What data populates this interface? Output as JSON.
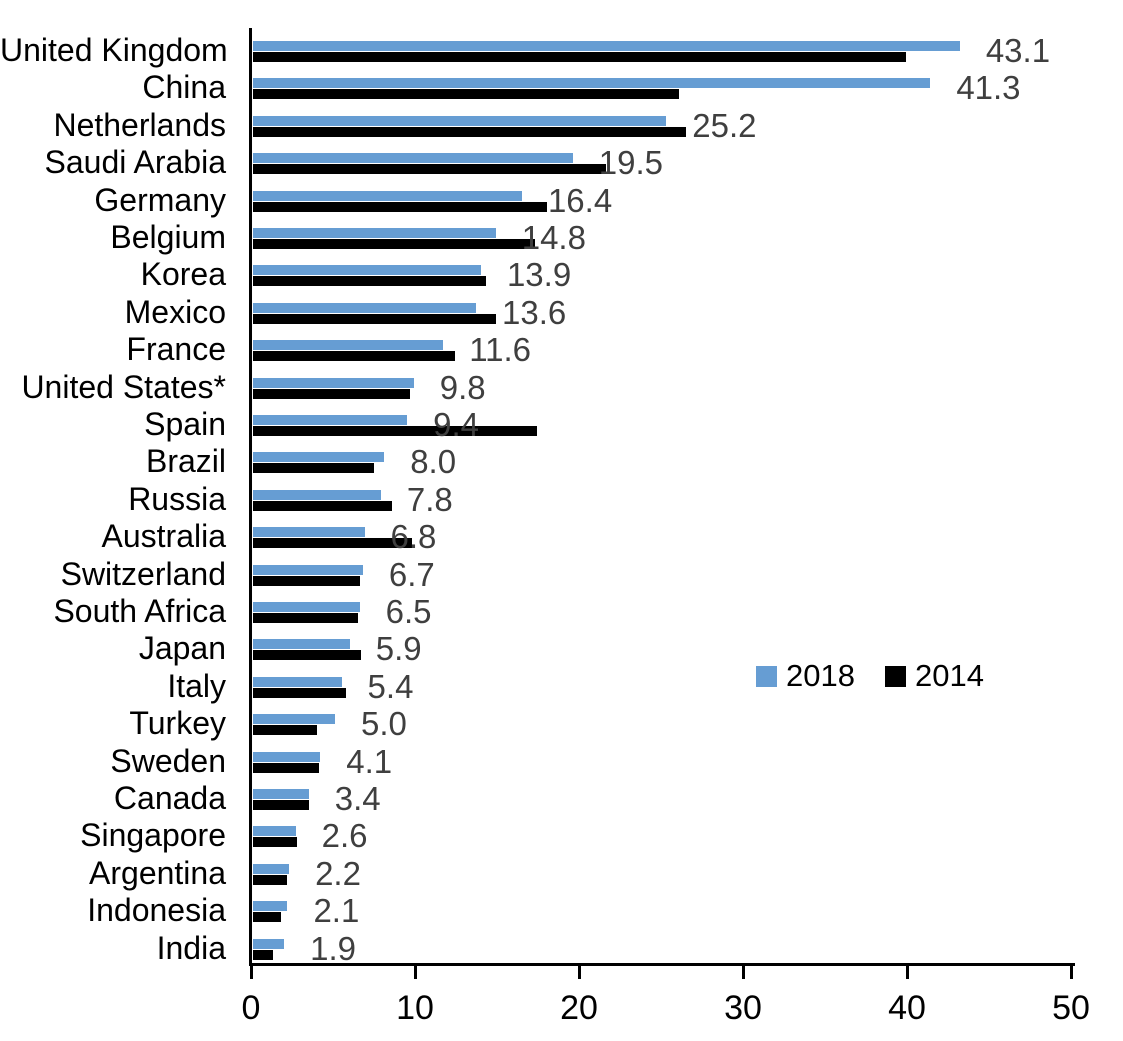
{
  "chart_data": {
    "type": "bar",
    "orientation": "horizontal",
    "title": "",
    "xlabel": "",
    "ylabel": "",
    "categories": [
      "United Kingdom",
      "China",
      "Netherlands",
      "Saudi Arabia",
      "Germany",
      "Belgium",
      "Korea",
      "Mexico",
      "France",
      "United States*",
      "Spain",
      "Brazil",
      "Russia",
      "Australia",
      "Switzerland",
      "South Africa",
      "Japan",
      "Italy",
      "Turkey",
      "Sweden",
      "Canada",
      "Singapore",
      "Argentina",
      "Indonesia",
      "India"
    ],
    "series": [
      {
        "name": "2018",
        "color": "#669dd3",
        "values": [
          43.1,
          41.3,
          25.2,
          19.5,
          16.4,
          14.8,
          13.9,
          13.6,
          11.6,
          9.8,
          9.4,
          8.0,
          7.8,
          6.8,
          6.7,
          6.5,
          5.9,
          5.4,
          5.0,
          4.1,
          3.4,
          2.6,
          2.2,
          2.1,
          1.9
        ]
      },
      {
        "name": "2014",
        "color": "#000000",
        "values": [
          39.8,
          26.0,
          26.4,
          21.5,
          17.9,
          17.2,
          14.2,
          14.8,
          12.3,
          9.6,
          17.3,
          7.4,
          8.5,
          9.7,
          6.5,
          6.4,
          6.6,
          5.7,
          3.9,
          4.0,
          3.4,
          2.7,
          2.1,
          1.7,
          1.2
        ]
      }
    ],
    "value_labels": {
      "labeled_series": "2018",
      "labels": [
        "43.1",
        "41.3",
        "25.2",
        "19.5",
        "16.4",
        "14.8",
        "13.9",
        "13.6",
        "11.6",
        "9.8",
        "9.4",
        "8.0",
        "7.8",
        "6.8",
        "6.7",
        "6.5",
        "5.9",
        "5.4",
        "5.0",
        "4.1",
        "3.4",
        "2.6",
        "2.2",
        "2.1",
        "1.9"
      ],
      "color": "#3f3f3f"
    },
    "xlim": [
      0,
      50
    ],
    "xticks": [
      "0",
      "10",
      "20",
      "30",
      "40",
      "50"
    ],
    "grid": false,
    "legend_position": "middle-right",
    "axis_color": "#000000",
    "background_color": "#ffffff"
  }
}
